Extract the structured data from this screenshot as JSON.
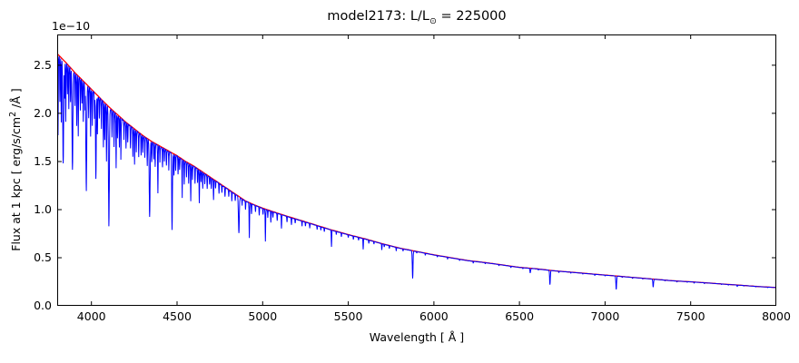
{
  "header": {
    "title_prefix": "model2173: L/L",
    "title_sub": "⊙",
    "title_suffix": " = 225000"
  },
  "axes": {
    "xlabel": "Wavelength [ Å ]",
    "ylabel_prefix": "Flux at 1 kpc [ erg/s/cm",
    "ylabel_sup": "2",
    "ylabel_suffix": " /Å ]",
    "offset_label": "1e−10"
  },
  "colors": {
    "spectrum": "#0000ff",
    "continuum": "#ff0000",
    "axes": "#000000",
    "background": "#ffffff"
  },
  "chart_data": {
    "type": "line",
    "title": "model2173: L/L⊙ = 225000",
    "xlabel": "Wavelength [ Å ]",
    "ylabel": "Flux at 1 kpc [ erg/s/cm² /Å ]",
    "y_scale_factor": "1e−10",
    "grid": false,
    "legend": "none",
    "xlim": [
      3800,
      8000
    ],
    "ylim": [
      0,
      2.82
    ],
    "xticks": [
      4000,
      4500,
      5000,
      5500,
      6000,
      6500,
      7000,
      7500,
      8000
    ],
    "xtick_labels": [
      "4000",
      "4500",
      "5000",
      "5500",
      "6000",
      "6500",
      "7000",
      "7500",
      "8000"
    ],
    "yticks": [
      0.0,
      0.5,
      1.0,
      1.5,
      2.0,
      2.5
    ],
    "ytick_labels": [
      "0.0",
      "0.5",
      "1.0",
      "1.5",
      "2.0",
      "2.5"
    ],
    "series": [
      {
        "name": "continuum-model",
        "color": "#ff0000",
        "description": "smooth stellar continuum, flux units 1e-10 erg/s/cm2/A",
        "anchors": [
          [
            3800,
            2.62
          ],
          [
            3850,
            2.53
          ],
          [
            3900,
            2.43
          ],
          [
            3950,
            2.34
          ],
          [
            4000,
            2.25
          ],
          [
            4050,
            2.16
          ],
          [
            4100,
            2.07
          ],
          [
            4150,
            1.99
          ],
          [
            4200,
            1.91
          ],
          [
            4250,
            1.84
          ],
          [
            4300,
            1.77
          ],
          [
            4350,
            1.71
          ],
          [
            4400,
            1.66
          ],
          [
            4450,
            1.61
          ],
          [
            4500,
            1.56
          ],
          [
            4550,
            1.5
          ],
          [
            4600,
            1.45
          ],
          [
            4650,
            1.39
          ],
          [
            4700,
            1.33
          ],
          [
            4750,
            1.27
          ],
          [
            4800,
            1.21
          ],
          [
            4850,
            1.15
          ],
          [
            4900,
            1.09
          ],
          [
            4950,
            1.05
          ],
          [
            5000,
            1.015
          ],
          [
            5100,
            0.955
          ],
          [
            5200,
            0.9
          ],
          [
            5300,
            0.845
          ],
          [
            5400,
            0.79
          ],
          [
            5500,
            0.74
          ],
          [
            5600,
            0.695
          ],
          [
            5700,
            0.645
          ],
          [
            5800,
            0.6
          ],
          [
            5900,
            0.565
          ],
          [
            6000,
            0.53
          ],
          [
            6100,
            0.5
          ],
          [
            6200,
            0.47
          ],
          [
            6300,
            0.45
          ],
          [
            6400,
            0.425
          ],
          [
            6500,
            0.4
          ],
          [
            6600,
            0.385
          ],
          [
            6700,
            0.365
          ],
          [
            6800,
            0.35
          ],
          [
            6900,
            0.335
          ],
          [
            7000,
            0.32
          ],
          [
            7100,
            0.305
          ],
          [
            7200,
            0.29
          ],
          [
            7300,
            0.275
          ],
          [
            7400,
            0.26
          ],
          [
            7500,
            0.25
          ],
          [
            7600,
            0.238
          ],
          [
            7700,
            0.225
          ],
          [
            7800,
            0.213
          ],
          [
            7900,
            0.2
          ],
          [
            8000,
            0.19
          ]
        ]
      },
      {
        "name": "stellar-spectrum",
        "color": "#0000ff",
        "description": "spectrum = continuum minus absorption lines [wavelength A, depth fraction, optional width A]",
        "noise_depth": 0.006,
        "default_line_width_A": 1.2,
        "absorption_lines": [
          [
            3805,
            0.32
          ],
          [
            3816,
            0.18
          ],
          [
            3824,
            0.26
          ],
          [
            3835,
            0.42,
            2.5
          ],
          [
            3843,
            0.15
          ],
          [
            3850,
            0.24
          ],
          [
            3860,
            0.12
          ],
          [
            3868,
            0.18
          ],
          [
            3878,
            0.14
          ],
          [
            3889,
            0.42,
            2.5
          ],
          [
            3904,
            0.14
          ],
          [
            3914,
            0.22
          ],
          [
            3923,
            0.26
          ],
          [
            3935,
            0.14
          ],
          [
            3944,
            0.1
          ],
          [
            3952,
            0.18
          ],
          [
            3962,
            0.12
          ],
          [
            3970,
            0.48,
            2.5
          ],
          [
            3984,
            0.14
          ],
          [
            3995,
            0.22
          ],
          [
            4005,
            0.16
          ],
          [
            4018,
            0.12
          ],
          [
            4026,
            0.4,
            2
          ],
          [
            4035,
            0.18
          ],
          [
            4046,
            0.1
          ],
          [
            4058,
            0.14
          ],
          [
            4070,
            0.22
          ],
          [
            4078,
            0.18
          ],
          [
            4088,
            0.28
          ],
          [
            4102,
            0.6,
            2.5
          ],
          [
            4120,
            0.14
          ],
          [
            4132,
            0.18
          ],
          [
            4144,
            0.28
          ],
          [
            4152,
            0.12
          ],
          [
            4163,
            0.16
          ],
          [
            4172,
            0.22
          ],
          [
            4190,
            0.1
          ],
          [
            4202,
            0.14
          ],
          [
            4212,
            0.1
          ],
          [
            4228,
            0.12
          ],
          [
            4242,
            0.16
          ],
          [
            4252,
            0.2
          ],
          [
            4262,
            0.12
          ],
          [
            4276,
            0.14
          ],
          [
            4290,
            0.12
          ],
          [
            4300,
            0.1
          ],
          [
            4312,
            0.12
          ],
          [
            4326,
            0.16
          ],
          [
            4340,
            0.46,
            2.5
          ],
          [
            4352,
            0.12
          ],
          [
            4364,
            0.1
          ],
          [
            4372,
            0.14
          ],
          [
            4388,
            0.3
          ],
          [
            4400,
            0.1
          ],
          [
            4415,
            0.12
          ],
          [
            4426,
            0.08
          ],
          [
            4438,
            0.1
          ],
          [
            4452,
            0.12
          ],
          [
            4471,
            0.5,
            2
          ],
          [
            4482,
            0.14
          ],
          [
            4492,
            0.1
          ],
          [
            4506,
            0.12
          ],
          [
            4515,
            0.08
          ],
          [
            4530,
            0.26
          ],
          [
            4542,
            0.16
          ],
          [
            4555,
            0.1
          ],
          [
            4568,
            0.14
          ],
          [
            4580,
            0.26
          ],
          [
            4590,
            0.1
          ],
          [
            4605,
            0.12
          ],
          [
            4620,
            0.1
          ],
          [
            4630,
            0.24
          ],
          [
            4640,
            0.08
          ],
          [
            4650,
            0.12
          ],
          [
            4662,
            0.08
          ],
          [
            4676,
            0.1
          ],
          [
            4690,
            0.06
          ],
          [
            4700,
            0.08
          ],
          [
            4713,
            0.16
          ],
          [
            4725,
            0.06
          ],
          [
            4745,
            0.08
          ],
          [
            4762,
            0.06
          ],
          [
            4780,
            0.08
          ],
          [
            4802,
            0.06
          ],
          [
            4820,
            0.08
          ],
          [
            4840,
            0.06
          ],
          [
            4861,
            0.33,
            2.5
          ],
          [
            4880,
            0.06
          ],
          [
            4900,
            0.08
          ],
          [
            4922,
            0.34
          ],
          [
            4935,
            0.1
          ],
          [
            4958,
            0.06
          ],
          [
            4980,
            0.08
          ],
          [
            5002,
            0.06
          ],
          [
            5016,
            0.33
          ],
          [
            5030,
            0.08
          ],
          [
            5048,
            0.12
          ],
          [
            5060,
            0.06
          ],
          [
            5085,
            0.08
          ],
          [
            5110,
            0.15
          ],
          [
            5142,
            0.06
          ],
          [
            5168,
            0.08
          ],
          [
            5190,
            0.05
          ],
          [
            5230,
            0.06
          ],
          [
            5250,
            0.05
          ],
          [
            5275,
            0.06
          ],
          [
            5318,
            0.05
          ],
          [
            5340,
            0.04
          ],
          [
            5360,
            0.05
          ],
          [
            5402,
            0.22
          ],
          [
            5430,
            0.04
          ],
          [
            5460,
            0.05
          ],
          [
            5500,
            0.04
          ],
          [
            5530,
            0.05
          ],
          [
            5560,
            0.04
          ],
          [
            5587,
            0.16
          ],
          [
            5620,
            0.05
          ],
          [
            5650,
            0.04
          ],
          [
            5696,
            0.1
          ],
          [
            5710,
            0.04
          ],
          [
            5740,
            0.05
          ],
          [
            5780,
            0.06
          ],
          [
            5820,
            0.04
          ],
          [
            5876,
            0.5,
            2
          ],
          [
            5900,
            0.03
          ],
          [
            5950,
            0.04
          ],
          [
            6020,
            0.03
          ],
          [
            6080,
            0.04
          ],
          [
            6150,
            0.03
          ],
          [
            6230,
            0.04
          ],
          [
            6300,
            0.03
          ],
          [
            6380,
            0.03
          ],
          [
            6450,
            0.04
          ],
          [
            6520,
            0.03
          ],
          [
            6563,
            0.12,
            2
          ],
          [
            6610,
            0.03
          ],
          [
            6678,
            0.4,
            2
          ],
          [
            6730,
            0.04
          ],
          [
            6800,
            0.03
          ],
          [
            6870,
            0.03
          ],
          [
            6940,
            0.04
          ],
          [
            7000,
            0.03
          ],
          [
            7065,
            0.45,
            2
          ],
          [
            7100,
            0.03
          ],
          [
            7160,
            0.04
          ],
          [
            7220,
            0.03
          ],
          [
            7281,
            0.3,
            2
          ],
          [
            7350,
            0.03
          ],
          [
            7420,
            0.04
          ],
          [
            7480,
            0.03
          ],
          [
            7520,
            0.05
          ],
          [
            7580,
            0.04
          ],
          [
            7680,
            0.03
          ],
          [
            7720,
            0.04
          ],
          [
            7772,
            0.08
          ],
          [
            7810,
            0.03
          ],
          [
            7880,
            0.03
          ],
          [
            7950,
            0.03
          ]
        ]
      }
    ]
  }
}
